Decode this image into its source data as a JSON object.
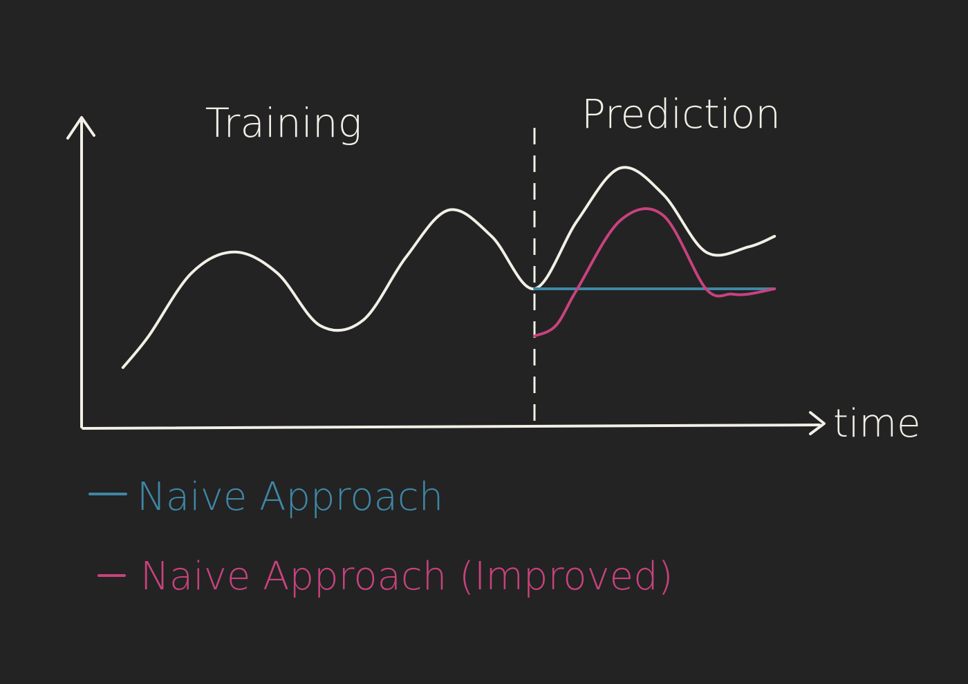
{
  "chart_data": {
    "type": "line",
    "x_axis_label": "time",
    "regions": [
      {
        "label": "Training"
      },
      {
        "label": "Prediction"
      }
    ],
    "split_x": 0.0,
    "series": [
      {
        "name": "",
        "color": "#f2f0e6",
        "x": [
          -9.6,
          -9.0,
          -8.0,
          -7.0,
          -6.0,
          -5.0,
          -4.0,
          -3.0,
          -2.0,
          -1.0,
          0.0,
          1.0,
          2.0,
          3.0,
          4.0,
          5.0,
          5.6
        ],
        "y": [
          -1.5,
          -0.9,
          0.3,
          0.7,
          0.3,
          -0.7,
          -0.6,
          0.6,
          1.5,
          1.0,
          0.0,
          1.3,
          2.3,
          1.8,
          0.7,
          0.8,
          1.0
        ]
      },
      {
        "name": "Naive Approach",
        "color": "#3f87a6",
        "x": [
          0.0,
          5.6
        ],
        "y": [
          0.0,
          0.0
        ]
      },
      {
        "name": "Naive Approach (Improved)",
        "color": "#c8427e",
        "x": [
          0.0,
          0.5,
          1.0,
          2.0,
          3.0,
          4.0,
          4.6,
          5.0,
          5.6
        ],
        "y": [
          -0.9,
          -0.7,
          0.0,
          1.3,
          1.4,
          0.0,
          -0.1,
          -0.1,
          0.0
        ]
      }
    ],
    "legend": {
      "placement": "bottom-left",
      "entries": [
        "Naive Approach",
        "Naive Approach (Improved)"
      ]
    },
    "grid": false
  },
  "colors": {
    "background": "#232323",
    "chalk": "#f2f0e6",
    "naive": "#3f87a6",
    "improved": "#c8427e"
  }
}
